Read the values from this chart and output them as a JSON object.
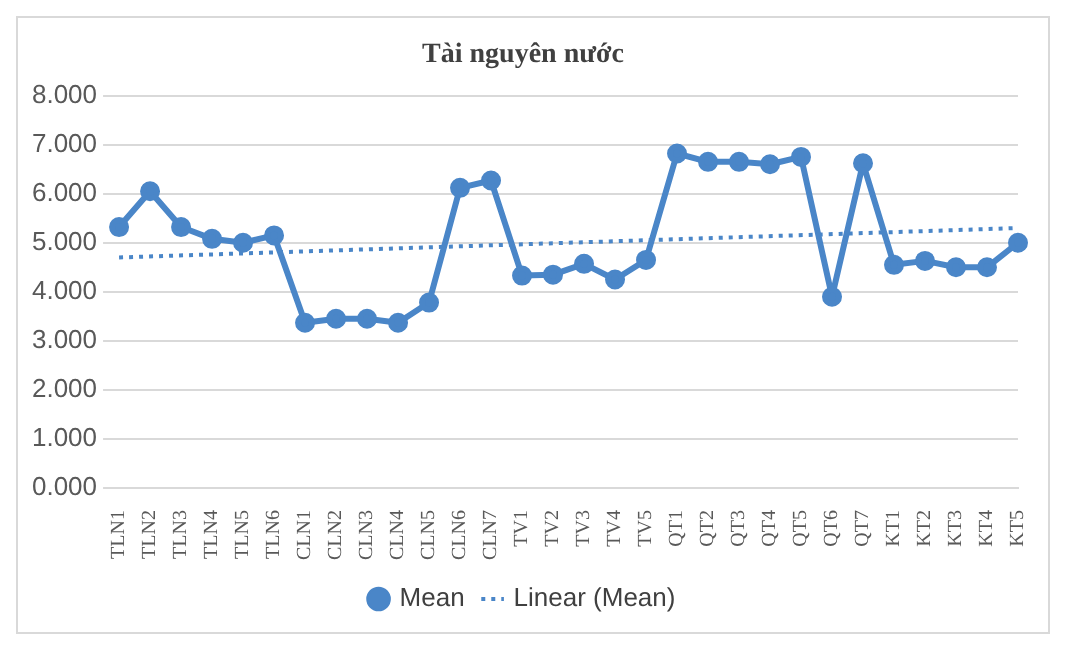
{
  "chart_data": {
    "type": "line",
    "title": "Tài nguyên nước",
    "categories": [
      "TLN1",
      "TLN2",
      "TLN3",
      "TLN4",
      "TLN5",
      "TLN6",
      "CLN1",
      "CLN2",
      "CLN3",
      "CLN4",
      "CLN5",
      "CLN6",
      "CLN7",
      "TV1",
      "TV2",
      "TV3",
      "TV4",
      "TV5",
      "QT1",
      "QT2",
      "QT3",
      "QT4",
      "QT5",
      "QT6",
      "QT7",
      "KT1",
      "KT2",
      "KT3",
      "KT4",
      "KT5"
    ],
    "series": [
      {
        "name": "Mean",
        "color": "#4a86c8",
        "marker": "circle",
        "line_style": "solid",
        "values": [
          5.32,
          6.05,
          5.32,
          5.08,
          5.0,
          5.15,
          3.37,
          3.45,
          3.45,
          3.37,
          3.78,
          6.12,
          6.27,
          4.33,
          4.35,
          4.57,
          4.25,
          4.65,
          6.82,
          6.65,
          6.65,
          6.6,
          6.75,
          3.9,
          6.62,
          4.55,
          4.63,
          4.5,
          4.5,
          5.0
        ]
      },
      {
        "name": "Linear (Mean)",
        "type": "line",
        "color": "#4a86c8",
        "marker": "none",
        "line_style": "dotted",
        "x": [
          "TLN1",
          "KT5"
        ],
        "values": [
          4.7,
          5.3
        ]
      }
    ],
    "ylim": [
      0,
      8
    ],
    "yticks": [
      {
        "value": 0,
        "label": "0.000"
      },
      {
        "value": 1,
        "label": "1.000"
      },
      {
        "value": 2,
        "label": "2.000"
      },
      {
        "value": 3,
        "label": "3.000"
      },
      {
        "value": 4,
        "label": "4.000"
      },
      {
        "value": 5,
        "label": "5.000"
      },
      {
        "value": 6,
        "label": "6.000"
      },
      {
        "value": 7,
        "label": "7.000"
      },
      {
        "value": 8,
        "label": "8.000"
      }
    ],
    "grid": "y",
    "legend": "bottom"
  }
}
